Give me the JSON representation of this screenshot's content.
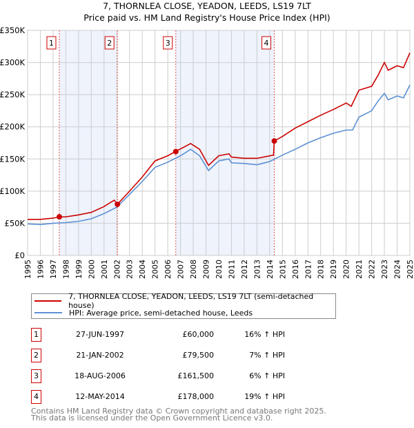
{
  "title": "7, THORNLEA CLOSE, YEADON, LEEDS, LS19 7LT",
  "subtitle": "Price paid vs. HM Land Registry's House Price Index (HPI)",
  "chart_data": {
    "type": "line",
    "title": "7, THORNLEA CLOSE, YEADON, LEEDS, LS19 7LT — Price paid vs. HM Land Registry's House Price Index (HPI)",
    "xlim": [
      1995,
      2025
    ],
    "ylim": [
      0,
      350000
    ],
    "x_ticks": [
      "1995",
      "1996",
      "1997",
      "1998",
      "1999",
      "2000",
      "2001",
      "2002",
      "2003",
      "2004",
      "2005",
      "2006",
      "2007",
      "2008",
      "2009",
      "2010",
      "2011",
      "2012",
      "2013",
      "2014",
      "2015",
      "2016",
      "2017",
      "2018",
      "2019",
      "2020",
      "2021",
      "2022",
      "2023",
      "2024",
      "2025"
    ],
    "y_ticks": [
      {
        "v": 0,
        "label": "£0"
      },
      {
        "v": 50000,
        "label": "£50K"
      },
      {
        "v": 100000,
        "label": "£100K"
      },
      {
        "v": 150000,
        "label": "£150K"
      },
      {
        "v": 200000,
        "label": "£200K"
      },
      {
        "v": 250000,
        "label": "£250K"
      },
      {
        "v": 300000,
        "label": "£300K"
      },
      {
        "v": 350000,
        "label": "£350K"
      }
    ],
    "grid": true,
    "series": [
      {
        "name": "7, THORNLEA CLOSE, YEADON, LEEDS, LS19 7LT (semi-detached house)",
        "color": "#cc0000",
        "x": [
          1995,
          1996,
          1997,
          1997.5,
          1998,
          1999,
          2000,
          2001,
          2001.8,
          2002.05,
          2003,
          2004,
          2005,
          2006,
          2006.6,
          2007.8,
          2008.5,
          2009.2,
          2010,
          2010.8,
          2011,
          2012,
          2013,
          2014.3,
          2014.36,
          2015,
          2016,
          2017,
          2018,
          2019,
          2020,
          2020.4,
          2021,
          2022,
          2022.5,
          2023,
          2023.3,
          2024,
          2024.5,
          2025
        ],
        "y": [
          56000,
          56000,
          58000,
          60000,
          60000,
          63000,
          67000,
          76000,
          86000,
          79500,
          100000,
          122000,
          147000,
          155000,
          161500,
          174000,
          165000,
          140000,
          155000,
          158000,
          153000,
          151000,
          151000,
          156000,
          178000,
          185000,
          198000,
          208000,
          218000,
          227000,
          237000,
          232000,
          257000,
          263000,
          280000,
          300000,
          288000,
          295000,
          292000,
          315000
        ]
      },
      {
        "name": "HPI: Average price, semi-detached house, Leeds",
        "color": "#5b8fd4",
        "x": [
          1995,
          1996,
          1997,
          1998,
          1999,
          2000,
          2001,
          2002,
          2003,
          2004,
          2005,
          2006,
          2007,
          2007.8,
          2008.5,
          2009.2,
          2010,
          2010.8,
          2011,
          2012,
          2013,
          2014,
          2015,
          2016,
          2017,
          2018,
          2019,
          2020,
          2020.5,
          2021,
          2022,
          2022.5,
          2023,
          2023.3,
          2024,
          2024.5,
          2025
        ],
        "y": [
          49000,
          48000,
          50000,
          51000,
          53000,
          57000,
          65000,
          75000,
          95000,
          115000,
          137000,
          145000,
          155000,
          165000,
          155000,
          132000,
          147000,
          150000,
          144000,
          143000,
          141000,
          146000,
          156000,
          165000,
          175000,
          183000,
          190000,
          195000,
          195000,
          215000,
          225000,
          240000,
          252000,
          242000,
          248000,
          245000,
          265000
        ]
      }
    ],
    "sales": [
      {
        "n": "1",
        "x": 1997.49,
        "y": 60000,
        "date": "27-JUN-1997",
        "price": "£60,000",
        "hpi": "16% ↑ HPI"
      },
      {
        "n": "2",
        "x": 2002.05,
        "y": 79500,
        "date": "21-JAN-2002",
        "price": "£79,500",
        "hpi": "7% ↑ HPI"
      },
      {
        "n": "3",
        "x": 2006.63,
        "y": 161500,
        "date": "18-AUG-2006",
        "price": "£161,500",
        "hpi": "6% ↑ HPI"
      },
      {
        "n": "4",
        "x": 2014.36,
        "y": 178000,
        "date": "12-MAY-2014",
        "price": "£178,000",
        "hpi": "19% ↑ HPI"
      }
    ],
    "shaded": [
      [
        1997.49,
        2002.05
      ],
      [
        2006.63,
        2014.36
      ]
    ],
    "legend_position": "bottom"
  },
  "legend": {
    "red": "7, THORNLEA CLOSE, YEADON, LEEDS, LS19 7LT (semi-detached house)",
    "blue": "HPI: Average price, semi-detached house, Leeds"
  },
  "footer": {
    "line1": "Contains HM Land Registry data © Crown copyright and database right 2025.",
    "line2": "This data is licensed under the Open Government Licence v3.0."
  }
}
